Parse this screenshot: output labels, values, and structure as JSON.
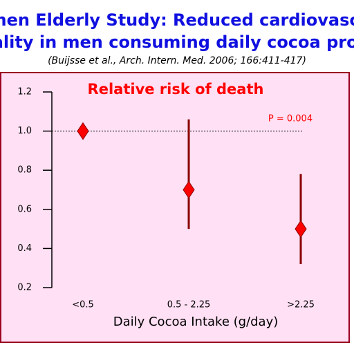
{
  "chart_data": {
    "type": "errorbar",
    "heading": [
      "phen Elderly Study: Reduced cardiovascu",
      "tality in men consuming daily cocoa prod"
    ],
    "subtitle": "(Buijsse et al., Arch. Intern. Med. 2006; 166:411-417)",
    "title": "Relative risk of death",
    "annotation": "P = 0.004",
    "x_label": "Daily Cocoa Intake (g/day)",
    "categories": [
      "<0.5",
      "0.5 - 2.25",
      ">2.25"
    ],
    "values": [
      1,
      0.7,
      0.5
    ],
    "lower": [
      null,
      0.5,
      0.32
    ],
    "upper": [
      null,
      1.06,
      0.78
    ],
    "reference_line": 1,
    "color": "#ff0000",
    "ylim": [
      0.2,
      1.2
    ],
    "yticks": [
      0.2,
      0.4,
      0.6,
      0.8,
      {
        "value": 1,
        "label": "1.0"
      },
      1.2
    ]
  }
}
